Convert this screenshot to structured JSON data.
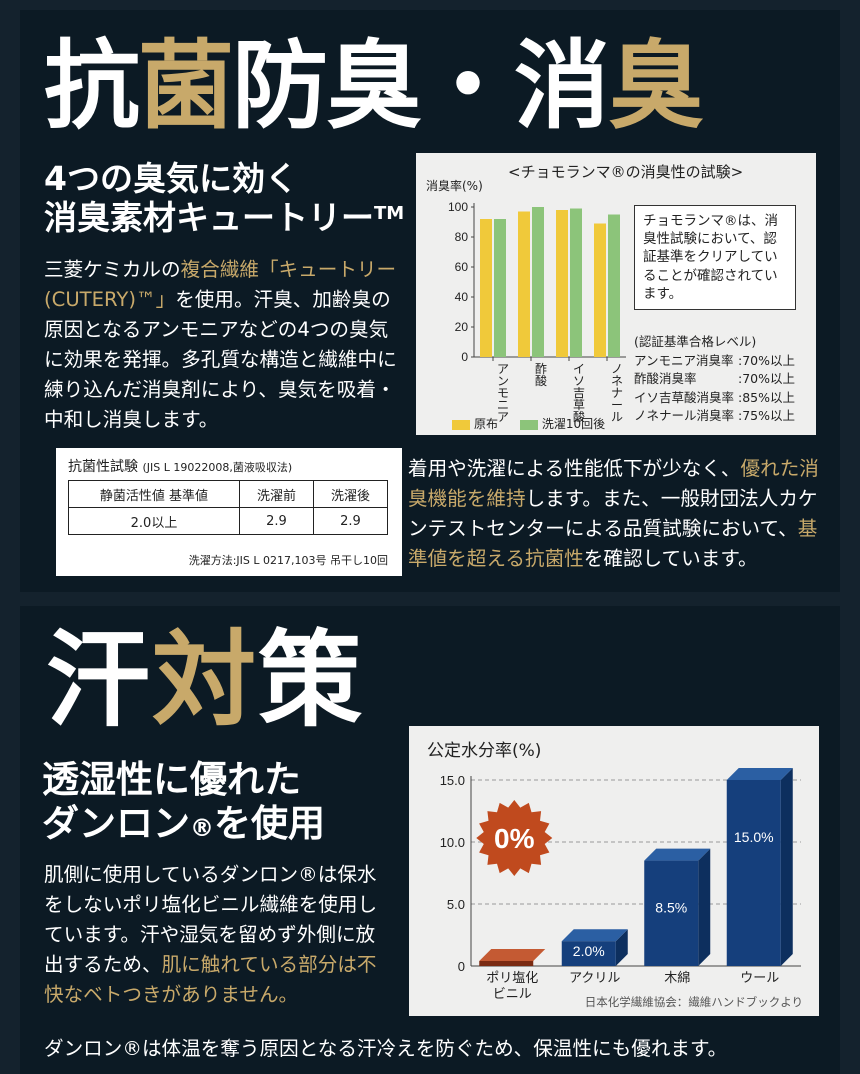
{
  "section1": {
    "title": {
      "w": "抗",
      "x": "菌",
      "y": "防臭・消",
      "z": "臭"
    },
    "subtitle": {
      "line1": "4つの臭気に効く",
      "line2": "消臭素材キュートリー",
      "tm": "TM"
    },
    "body": {
      "p1": "三菱ケミカルの",
      "h1": "複合繊維「キュートリー(CUTERY)™」",
      "p2": "を使用。汗臭、加齢臭の原因となるアンモニアなどの4つの臭気に効果を発揮。多孔質な構造と繊維中に練り込んだ消臭剤により、臭気を吸着・中和し消臭します。"
    },
    "antibacterial": {
      "title": "抗菌性試験",
      "title_note": "(JIS L 19022008,菌液吸収法)",
      "headers": [
        "静菌活性値 基準値",
        "洗濯前",
        "洗濯後"
      ],
      "row": [
        "2.0以上",
        "2.9",
        "2.9"
      ],
      "note": "洗濯方法:JIS L 0217,103号 吊干し10回"
    },
    "text2": {
      "p1": "着用や洗濯による性能低下が少なく、",
      "h1": "優れた消臭機能を維持",
      "p2": "します。また、一般財団法人カケンテストセンターによる品質試験において、",
      "h2": "基準値を超える抗菌性",
      "p3": "を確認しています。"
    },
    "deodor_box": {
      "title": "<チョモランマ®の消臭性の試験>",
      "callout": "チョモランマ®は、消臭性試験において、認証基準をクリアしていることが確認されています。",
      "levels_title": "(認証基準合格レベル)",
      "levels": [
        {
          "label": "アンモニア消臭率",
          "value": ":70%以上"
        },
        {
          "label": "酢酸消臭率",
          "value": ":70%以上"
        },
        {
          "label": "イソ吉草酸消臭率",
          "value": ":85%以上"
        },
        {
          "label": "ノネナール消臭率",
          "value": ":75%以上"
        }
      ]
    }
  },
  "section2": {
    "title": {
      "a": "汗",
      "b": "対",
      "c": "策"
    },
    "subtitle": {
      "line1": "透湿性に優れた",
      "line2": "ダンロン",
      "reg": "®",
      "line2b": "を使用"
    },
    "body": {
      "p1": "肌側に使用しているダンロン®は保水をしないポリ塩化ビニル繊維を使用しています。汗や湿気を留めず外側に放出するため、",
      "h1": "肌に触れている部分は不快なベトつきがありません。"
    },
    "bottom": "ダンロン®は体温を奪う原因となる汗冷えを防ぐため、保温性にも優れます。",
    "moisture_box": {
      "source": "日本化学繊維協会：繊維ハンドブックより"
    }
  },
  "chart_data": [
    {
      "type": "bar",
      "title": "",
      "ylabel": "消臭率(%)",
      "categories": [
        "アンモニア",
        "酢酸",
        "イソ吉草酸",
        "ノネナール"
      ],
      "series": [
        {
          "name": "原布",
          "values": [
            92,
            97,
            98,
            89
          ],
          "color": "#f0c93a"
        },
        {
          "name": "洗濯10回後",
          "values": [
            92,
            100,
            99,
            95
          ],
          "color": "#8cc47a"
        }
      ],
      "ylim": [
        0,
        100
      ],
      "yticks": [
        0,
        20,
        40,
        60,
        80,
        100
      ]
    },
    {
      "type": "bar",
      "title": "公定水分率(%)",
      "categories": [
        "ポリ塩化ビニル",
        "アクリル",
        "木綿",
        "ウール"
      ],
      "values": [
        0,
        2.0,
        8.5,
        15.0
      ],
      "labels": [
        "0%",
        "2.0%",
        "8.5%",
        "15.0%"
      ],
      "ylim": [
        0,
        15
      ],
      "yticks": [
        "0",
        "5.0",
        "10.0",
        "15.0"
      ],
      "grid": true
    }
  ]
}
